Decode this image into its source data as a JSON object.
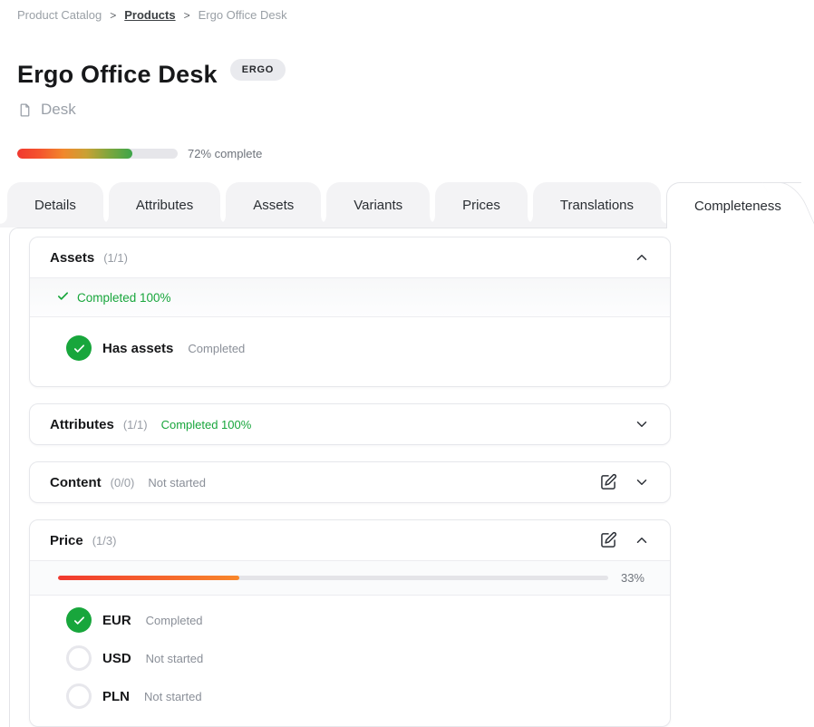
{
  "breadcrumb": {
    "separator": ">",
    "items": [
      {
        "label": "Product Catalog",
        "link": false,
        "clickable": true
      },
      {
        "label": "Products",
        "link": true,
        "clickable": true
      },
      {
        "label": "Ergo Office Desk",
        "link": false,
        "clickable": false
      }
    ]
  },
  "header": {
    "title": "Ergo Office Desk",
    "badge": "ERGO",
    "category": "Desk",
    "progress_percent": 72,
    "progress_label": "72% complete"
  },
  "tabs": [
    {
      "label": "Details",
      "active": false
    },
    {
      "label": "Attributes",
      "active": false
    },
    {
      "label": "Assets",
      "active": false
    },
    {
      "label": "Variants",
      "active": false
    },
    {
      "label": "Prices",
      "active": false
    },
    {
      "label": "Translations",
      "active": false
    },
    {
      "label": "Completeness",
      "active": true
    }
  ],
  "sections": [
    {
      "name": "Assets",
      "count": "(1/1)",
      "expanded": true,
      "editable": false,
      "summary": {
        "icon": "check-icon",
        "text": "Completed 100%",
        "state": "complete"
      },
      "items": [
        {
          "label": "Has assets",
          "status": "Completed",
          "state": "complete"
        }
      ]
    },
    {
      "name": "Attributes",
      "count": "(1/1)",
      "expanded": false,
      "editable": false,
      "header_status": {
        "text": "Completed 100%",
        "state": "complete"
      }
    },
    {
      "name": "Content",
      "count": "(0/0)",
      "expanded": false,
      "editable": true,
      "header_status": {
        "text": "Not started",
        "state": "none"
      }
    },
    {
      "name": "Price",
      "count": "(1/3)",
      "expanded": true,
      "editable": true,
      "progress": {
        "percent": 33,
        "label": "33%"
      },
      "items": [
        {
          "label": "EUR",
          "status": "Completed",
          "state": "complete"
        },
        {
          "label": "USD",
          "status": "Not started",
          "state": "none"
        },
        {
          "label": "PLN",
          "status": "Not started",
          "state": "none"
        }
      ]
    }
  ],
  "icons": {
    "category": "document-icon",
    "edit": "square-pen-icon",
    "collapse": "chevron-up-icon",
    "expand": "chevron-down-icon",
    "check": "check-icon"
  },
  "colors": {
    "green": "#18a63c",
    "badge_bg": "#e9eaee",
    "tab_bg": "#f3f3f5",
    "card_border": "#e6e7eb",
    "track": "#e6e6ea",
    "top_progress_gradient": [
      "#f1382f",
      "#f4552e",
      "#f1872c",
      "#c9a135",
      "#7da63d",
      "#3ea54a"
    ],
    "price_progress_gradient": [
      "#f1382f",
      "#f8872b"
    ]
  }
}
